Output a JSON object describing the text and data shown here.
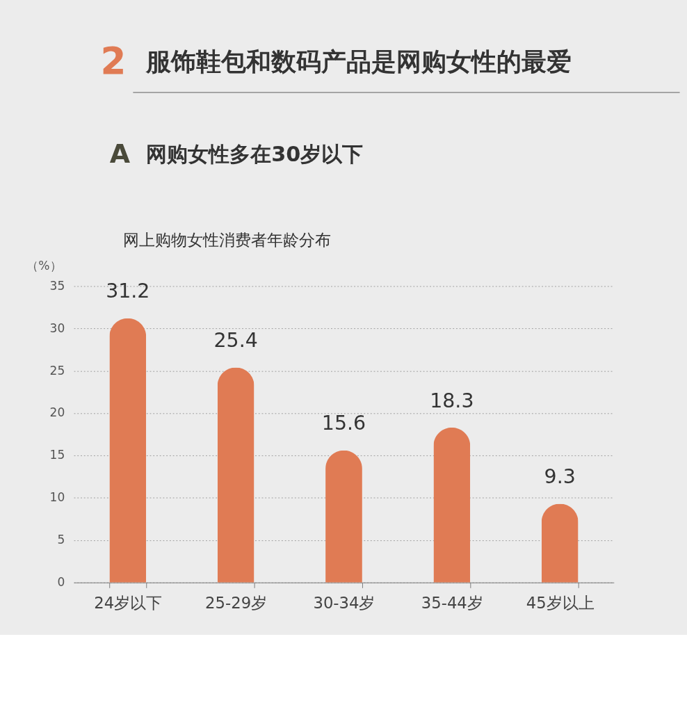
{
  "chart_data": {
    "type": "bar",
    "title": "服饰鞋包和数码产品是网购女性的最爱",
    "subtitle": "网购女性多在30岁以下",
    "annotations": [
      "2",
      "A",
      "网上购物女性消费者年龄分布"
    ],
    "ylabel": "（%）",
    "categories": [
      "24岁以下",
      "25-29岁",
      "30-34岁",
      "35-44岁",
      "45岁以上"
    ],
    "values": [
      31.2,
      25.4,
      15.6,
      18.3,
      9.3
    ],
    "color": "#e07b54",
    "ylim": [
      0,
      35
    ],
    "yticks": [
      0,
      5,
      10,
      15,
      20,
      25,
      30,
      35
    ],
    "grid": "y",
    "data_labels": true
  }
}
